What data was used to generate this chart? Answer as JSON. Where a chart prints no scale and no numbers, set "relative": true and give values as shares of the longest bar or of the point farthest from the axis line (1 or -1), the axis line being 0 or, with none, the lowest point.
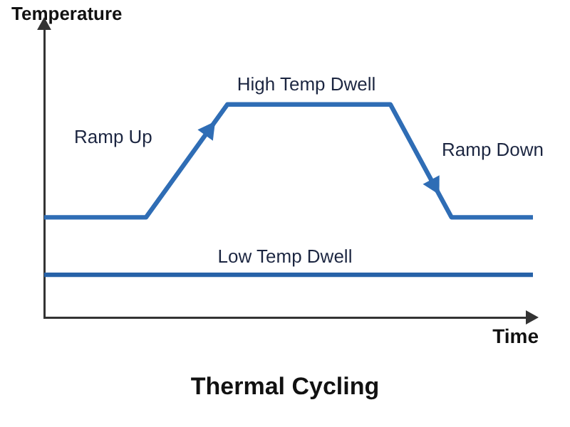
{
  "chart_data": {
    "type": "line",
    "title": "Thermal Cycling",
    "xlabel": "Time",
    "ylabel": "Temperature",
    "relative": true,
    "categories": [
      null,
      null,
      null,
      null,
      null,
      null,
      null,
      null,
      null,
      null,
      null,
      null,
      null,
      null,
      null,
      null,
      null,
      null,
      null,
      null,
      null,
      null,
      null,
      null,
      null
    ],
    "series": [
      {
        "color": "#2f6db5",
        "values": [
          0.47,
          0.47,
          0.47,
          0.47,
          0.47,
          0.47,
          null,
          null,
          null,
          1,
          1,
          1,
          1,
          1,
          1,
          1,
          1,
          1,
          null,
          null,
          0.47,
          0.47,
          0.47,
          0.47,
          0.47
        ]
      },
      {
        "color": "#2762a8",
        "values": [
          0.2,
          0.2,
          0.2,
          0.2,
          0.2,
          0.2,
          0.2,
          0.2,
          0.2,
          0.2,
          0.2,
          0.2,
          0.2,
          0.2,
          0.2,
          0.2,
          0.2,
          0.2,
          0.2,
          0.2,
          0.2,
          0.2,
          0.2,
          0.2,
          0.2
        ]
      }
    ],
    "annotations": [
      "Ramp Up",
      "High Temp Dwell",
      "Ramp Down",
      "Low Temp Dwell"
    ],
    "grid": false,
    "legend": false,
    "marker": "none",
    "line_style": "solid",
    "tick_labels": false
  }
}
